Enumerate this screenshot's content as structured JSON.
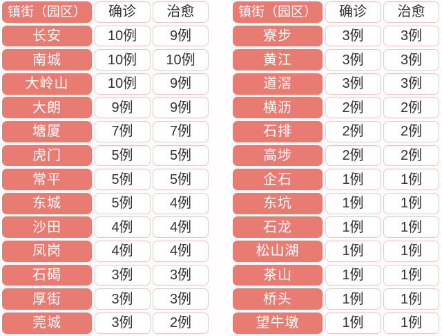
{
  "colors": {
    "accent": "#e87c72",
    "cell_border": "#eec6c0",
    "name_text": "#ffffff",
    "value_text": "#333333",
    "background": "#ffffff"
  },
  "chart_data": [
    {
      "type": "table",
      "columns": [
        "镇街（园区）",
        "确诊",
        "治愈"
      ],
      "rows": [
        [
          "长安",
          "10例",
          "9例"
        ],
        [
          "南城",
          "10例",
          "10例"
        ],
        [
          "大岭山",
          "10例",
          "9例"
        ],
        [
          "大朗",
          "9例",
          "9例"
        ],
        [
          "塘厦",
          "7例",
          "7例"
        ],
        [
          "虎门",
          "5例",
          "5例"
        ],
        [
          "常平",
          "5例",
          "5例"
        ],
        [
          "东城",
          "5例",
          "4例"
        ],
        [
          "沙田",
          "4例",
          "4例"
        ],
        [
          "凤岗",
          "4例",
          "4例"
        ],
        [
          "石碣",
          "3例",
          "3例"
        ],
        [
          "厚街",
          "3例",
          "3例"
        ],
        [
          "莞城",
          "3例",
          "2例"
        ]
      ]
    },
    {
      "type": "table",
      "columns": [
        "镇街（园区）",
        "确诊",
        "治愈"
      ],
      "rows": [
        [
          "寮步",
          "3例",
          "3例"
        ],
        [
          "黄江",
          "3例",
          "3例"
        ],
        [
          "道滘",
          "3例",
          "3例"
        ],
        [
          "横沥",
          "2例",
          "2例"
        ],
        [
          "石排",
          "2例",
          "2例"
        ],
        [
          "高埗",
          "2例",
          "2例"
        ],
        [
          "企石",
          "1例",
          "1例"
        ],
        [
          "东坑",
          "1例",
          "1例"
        ],
        [
          "石龙",
          "1例",
          "1例"
        ],
        [
          "松山湖",
          "1例",
          "1例"
        ],
        [
          "茶山",
          "1例",
          "1例"
        ],
        [
          "桥头",
          "1例",
          "1例"
        ],
        [
          "望牛墩",
          "1例",
          "1例"
        ]
      ]
    }
  ]
}
